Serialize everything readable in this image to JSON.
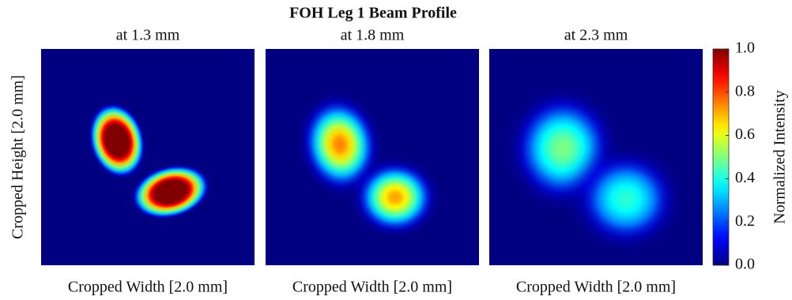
{
  "chart_data": {
    "type": "heatmap",
    "title": "FOH Leg 1 Beam Profile",
    "ylabel": "Cropped Height [2.0 mm]",
    "colormap": "jet",
    "panels": [
      {
        "subtitle": "at 1.3 mm",
        "xlabel": "Cropped Width [2.0 mm]",
        "peaks": [
          1.0,
          1.0
        ]
      },
      {
        "subtitle": "at 1.8 mm",
        "xlabel": "Cropped Width [2.0 mm]",
        "peaks": [
          0.75,
          0.72
        ]
      },
      {
        "subtitle": "at 2.3 mm",
        "xlabel": "Cropped Width [2.0 mm]",
        "peaks": [
          0.5,
          0.42
        ]
      }
    ],
    "colorbar": {
      "label": "Normalized Intensity",
      "lim": [
        0,
        1
      ],
      "ticks": [
        {
          "value": 0,
          "label": "0.0"
        },
        0.2,
        0.4,
        0.6,
        0.8,
        {
          "value": 1,
          "label": "1.0"
        }
      ]
    }
  }
}
